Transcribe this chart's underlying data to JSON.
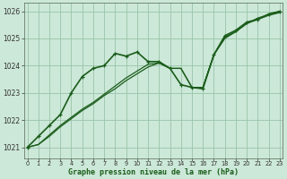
{
  "background_color": "#cce8d8",
  "grid_color": "#99c4aa",
  "line_color": "#1a5c1a",
  "xlabel": "Graphe pression niveau de la mer (hPa)",
  "xlim": [
    -0.3,
    23.3
  ],
  "ylim": [
    1020.6,
    1026.3
  ],
  "yticks": [
    1021,
    1022,
    1023,
    1024,
    1025,
    1026
  ],
  "xticks": [
    0,
    1,
    2,
    3,
    4,
    5,
    6,
    7,
    8,
    9,
    10,
    11,
    12,
    13,
    14,
    15,
    16,
    17,
    18,
    19,
    20,
    21,
    22,
    23
  ],
  "series": [
    {
      "x": [
        0,
        1,
        2,
        3,
        4,
        5,
        6,
        7,
        8,
        9,
        10,
        11,
        12,
        13,
        14,
        15,
        16,
        17,
        18,
        19,
        20,
        21,
        22,
        23
      ],
      "y": [
        1021.0,
        1021.4,
        1021.8,
        1022.2,
        1023.0,
        1023.6,
        1023.9,
        1024.0,
        1024.45,
        1024.35,
        1024.5,
        1024.15,
        1024.15,
        1023.9,
        1023.3,
        1023.2,
        1023.15,
        1024.4,
        1025.1,
        1025.3,
        1025.6,
        1025.7,
        1025.9,
        1026.0
      ],
      "marker": true,
      "linewidth": 1.2
    },
    {
      "x": [
        0,
        1,
        2,
        3,
        4,
        5,
        6,
        7,
        8,
        9,
        10,
        11,
        12,
        13,
        14,
        15,
        16,
        17,
        18,
        19,
        20,
        21,
        22,
        23
      ],
      "y": [
        1021.0,
        1021.1,
        1021.4,
        1021.75,
        1022.05,
        1022.35,
        1022.6,
        1022.9,
        1023.15,
        1023.45,
        1023.7,
        1023.95,
        1024.1,
        1023.9,
        1023.9,
        1023.2,
        1023.2,
        1024.4,
        1025.0,
        1025.25,
        1025.55,
        1025.7,
        1025.85,
        1025.95
      ],
      "marker": false,
      "linewidth": 0.9
    },
    {
      "x": [
        0,
        1,
        2,
        3,
        4,
        5,
        6,
        7,
        8,
        9,
        10,
        11,
        12,
        13,
        14,
        15,
        16,
        17,
        18,
        19,
        20,
        21,
        22,
        23
      ],
      "y": [
        1021.0,
        1021.1,
        1021.45,
        1021.8,
        1022.1,
        1022.4,
        1022.65,
        1022.95,
        1023.25,
        1023.55,
        1023.8,
        1024.05,
        1024.1,
        1023.9,
        1023.9,
        1023.2,
        1023.2,
        1024.4,
        1025.05,
        1025.25,
        1025.55,
        1025.75,
        1025.88,
        1025.98
      ],
      "marker": false,
      "linewidth": 0.9
    }
  ]
}
